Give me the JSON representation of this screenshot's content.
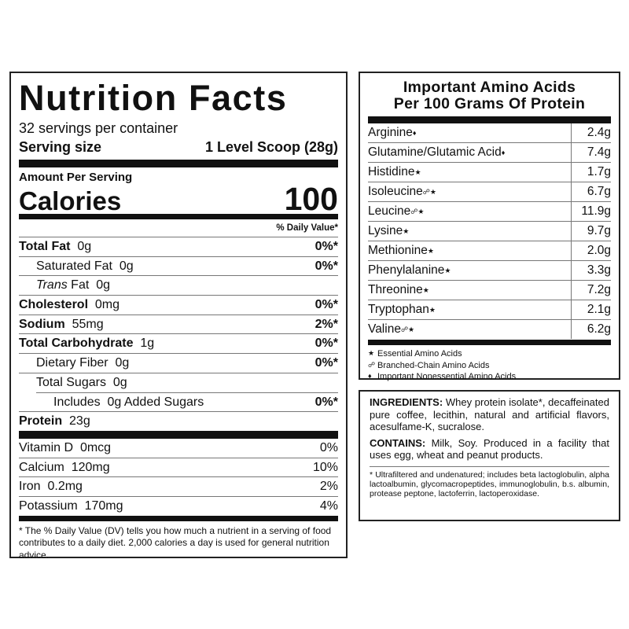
{
  "nutrition": {
    "title": "Nutrition Facts",
    "servings": "32 servings per container",
    "serving_size_label": "Serving size",
    "serving_size": "1 Level Scoop (28g)",
    "amount_per_serving": "Amount Per Serving",
    "calories_label": "Calories",
    "calories": "100",
    "dv_header": "% Daily Value*",
    "rows": [
      {
        "label": "Total Fat",
        "amount": "0g",
        "dv": "0%*"
      },
      {
        "label": "Saturated Fat",
        "amount": "0g",
        "dv": "0%*"
      },
      {
        "label_italic": "Trans",
        "label": "Fat",
        "amount": "0g"
      },
      {
        "label": "Cholesterol",
        "amount": "0mg",
        "dv": "0%*"
      },
      {
        "label": "Sodium",
        "amount": "55mg",
        "dv": "2%*"
      },
      {
        "label": "Total Carbohydrate",
        "amount": "1g",
        "dv": "0%*"
      },
      {
        "label": "Dietary Fiber",
        "amount": "0g",
        "dv": "0%*"
      },
      {
        "label": "Total Sugars",
        "amount": "0g"
      },
      {
        "label": "Includes",
        "amount": "0g",
        "label_after": "Added Sugars",
        "dv": "0%*"
      },
      {
        "label": "Protein",
        "amount": "23g"
      }
    ],
    "vitamins": [
      {
        "label": "Vitamin D",
        "amount": "0mcg",
        "dv": "0%"
      },
      {
        "label": "Calcium",
        "amount": "120mg",
        "dv": "10%"
      },
      {
        "label": "Iron",
        "amount": "0.2mg",
        "dv": "2%"
      },
      {
        "label": "Potassium",
        "amount": "170mg",
        "dv": "4%"
      }
    ],
    "footnote": "* The % Daily Value (DV) tells you how much a nutrient in a serving of food contributes to a daily diet. 2,000 calories a day is used for general nutrition advice."
  },
  "amino": {
    "title_line1": "Important Amino Acids",
    "title_line2": "Per 100 Grams Of Protein",
    "rows": [
      {
        "name": "Arginine",
        "marks": "♦",
        "amount": "2.4g"
      },
      {
        "name": "Glutamine/Glutamic Acid",
        "marks": "♦",
        "amount": "7.4g"
      },
      {
        "name": "Histidine",
        "marks": "★",
        "amount": "1.7g"
      },
      {
        "name": "Isoleucine",
        "marks": "☍★",
        "amount": "6.7g"
      },
      {
        "name": "Leucine",
        "marks": "☍★",
        "amount": "11.9g"
      },
      {
        "name": "Lysine",
        "marks": "★",
        "amount": "9.7g"
      },
      {
        "name": "Methionine",
        "marks": "★",
        "amount": "2.0g"
      },
      {
        "name": "Phenylalanine",
        "marks": "★",
        "amount": "3.3g"
      },
      {
        "name": "Threonine",
        "marks": "★",
        "amount": "7.2g"
      },
      {
        "name": "Tryptophan",
        "marks": "★",
        "amount": "2.1g"
      },
      {
        "name": "Valine",
        "marks": "☍★",
        "amount": "6.2g"
      }
    ],
    "legend": [
      {
        "symbol": "★",
        "text": "Essential Amino Acids"
      },
      {
        "symbol": "☍",
        "text": "Branched-Chain Amino Acids"
      },
      {
        "symbol": "♦",
        "text": "Important Nonessential Amino Acids"
      }
    ]
  },
  "ingredients": {
    "ingredients_label": "INGREDIENTS:",
    "ingredients_text": "Whey protein isolate*, decaffeinated pure coffee, lecithin, natural and artificial flavors, acesulfame-K, sucralose.",
    "contains_label": "CONTAINS:",
    "contains_text": "Milk, Soy. Produced in a facility that uses egg, wheat and peanut products.",
    "footnote": "* Ultrafiltered and undenatured; includes beta lactoglobulin, alpha lactoalbumin, glycomacropeptides, immunoglobulin, b.s. albumin, protease peptone, lactoferrin, lactoperoxidase."
  }
}
